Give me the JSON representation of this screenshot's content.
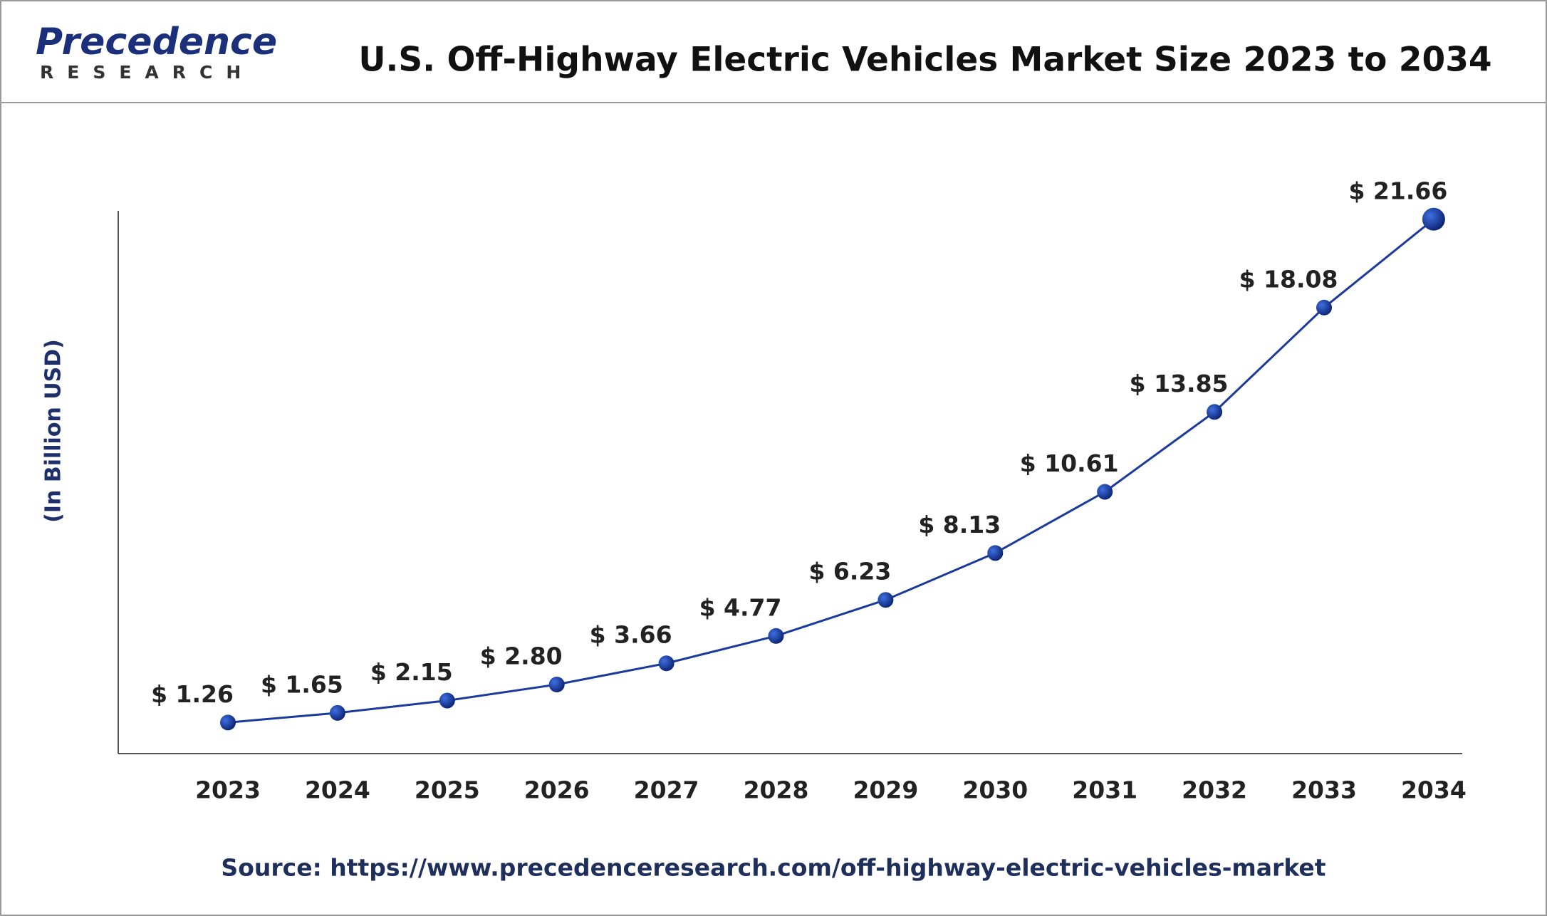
{
  "logo": {
    "name": "Precedence",
    "tagline": "RESEARCH"
  },
  "chart_data": {
    "type": "line",
    "title": "U.S. Off-Highway Electric Vehicles Market Size 2023 to 2034",
    "y_label": "(In Billion USD)",
    "source": "Source: https://www.precedenceresearch.com/off-highway-electric-vehicles-market",
    "categories": [
      "2023",
      "2024",
      "2025",
      "2026",
      "2027",
      "2028",
      "2029",
      "2030",
      "2031",
      "2032",
      "2033",
      "2034"
    ],
    "values": [
      1.26,
      1.65,
      2.15,
      2.8,
      3.66,
      4.77,
      6.23,
      8.13,
      10.61,
      13.85,
      18.08,
      21.66
    ],
    "value_labels": [
      "$ 1.26",
      "$ 1.65",
      "$ 2.15",
      "$ 2.80",
      "$ 3.66",
      "$ 4.77",
      "$ 6.23",
      "$ 8.13",
      "$ 10.61",
      "$ 13.85",
      "$ 18.08",
      "$ 21.66"
    ],
    "color": "#1a3a9c",
    "ylim": [
      0,
      22
    ],
    "grid": false
  }
}
